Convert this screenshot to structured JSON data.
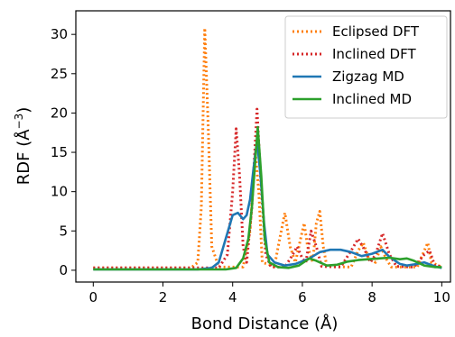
{
  "chart_data": {
    "type": "line",
    "title": "",
    "xlabel": "Bond Distance (Å)",
    "ylabel_main": "RDF (Å",
    "ylabel_exp": "−3",
    "ylabel_close": ")",
    "xlim": [
      -0.5,
      10.25
    ],
    "ylim": [
      -1.5,
      33
    ],
    "x_ticks": [
      0,
      2,
      4,
      6,
      8,
      10
    ],
    "y_ticks": [
      0,
      5,
      10,
      15,
      20,
      25,
      30
    ],
    "grid": false,
    "legend_position": "top-right",
    "series": [
      {
        "name": "Eclipsed DFT",
        "color": "#ff7f0e",
        "style": "dotted",
        "points": [
          [
            0,
            0.3
          ],
          [
            2.8,
            0.3
          ],
          [
            3.0,
            1
          ],
          [
            3.1,
            8
          ],
          [
            3.2,
            30.8
          ],
          [
            3.3,
            18
          ],
          [
            3.4,
            3
          ],
          [
            3.6,
            0.4
          ],
          [
            4.3,
            0.4
          ],
          [
            4.5,
            5
          ],
          [
            4.65,
            15
          ],
          [
            4.75,
            10
          ],
          [
            4.85,
            1
          ],
          [
            5.2,
            0.5
          ],
          [
            5.35,
            4
          ],
          [
            5.5,
            7.3
          ],
          [
            5.65,
            3
          ],
          [
            5.8,
            1
          ],
          [
            5.95,
            4
          ],
          [
            6.05,
            6
          ],
          [
            6.15,
            3
          ],
          [
            6.3,
            1
          ],
          [
            6.4,
            6
          ],
          [
            6.5,
            7.5
          ],
          [
            6.6,
            3
          ],
          [
            6.7,
            0.5
          ],
          [
            7.4,
            0.4
          ],
          [
            7.6,
            2.5
          ],
          [
            7.75,
            3.5
          ],
          [
            7.9,
            1.5
          ],
          [
            8.1,
            1
          ],
          [
            8.25,
            3
          ],
          [
            8.4,
            1.5
          ],
          [
            8.55,
            0.4
          ],
          [
            9.3,
            0.4
          ],
          [
            9.5,
            2.5
          ],
          [
            9.6,
            3.5
          ],
          [
            9.7,
            1
          ],
          [
            10.0,
            0.4
          ]
        ]
      },
      {
        "name": "Inclined DFT",
        "color": "#d62728",
        "style": "dotted",
        "points": [
          [
            0,
            0.3
          ],
          [
            3.6,
            0.3
          ],
          [
            3.85,
            2
          ],
          [
            4.0,
            10
          ],
          [
            4.1,
            18
          ],
          [
            4.2,
            12
          ],
          [
            4.3,
            3
          ],
          [
            4.4,
            1
          ],
          [
            4.55,
            8
          ],
          [
            4.7,
            20.5
          ],
          [
            4.8,
            12
          ],
          [
            4.95,
            2
          ],
          [
            5.1,
            0.4
          ],
          [
            5.5,
            0.4
          ],
          [
            5.7,
            1.8
          ],
          [
            5.85,
            3
          ],
          [
            6.0,
            1.5
          ],
          [
            6.1,
            1
          ],
          [
            6.25,
            5
          ],
          [
            6.4,
            3
          ],
          [
            6.55,
            0.5
          ],
          [
            7.1,
            0.4
          ],
          [
            7.4,
            2.5
          ],
          [
            7.6,
            4
          ],
          [
            7.8,
            2.5
          ],
          [
            7.95,
            1
          ],
          [
            8.1,
            2
          ],
          [
            8.3,
            4.7
          ],
          [
            8.5,
            2
          ],
          [
            8.7,
            0.5
          ],
          [
            9.2,
            0.4
          ],
          [
            9.5,
            2
          ],
          [
            9.65,
            2.5
          ],
          [
            9.8,
            0.6
          ],
          [
            10.0,
            0.5
          ]
        ]
      },
      {
        "name": "Zigzag MD",
        "color": "#1f77b4",
        "style": "solid",
        "points": [
          [
            0,
            0.1
          ],
          [
            3.0,
            0.1
          ],
          [
            3.4,
            0.3
          ],
          [
            3.6,
            1
          ],
          [
            3.8,
            4
          ],
          [
            4.0,
            7
          ],
          [
            4.15,
            7.3
          ],
          [
            4.3,
            6.5
          ],
          [
            4.4,
            7
          ],
          [
            4.5,
            9
          ],
          [
            4.6,
            13
          ],
          [
            4.7,
            16.5
          ],
          [
            4.8,
            12
          ],
          [
            4.9,
            6
          ],
          [
            5.0,
            2
          ],
          [
            5.2,
            1
          ],
          [
            5.5,
            0.6
          ],
          [
            5.8,
            0.8
          ],
          [
            6.2,
            1.5
          ],
          [
            6.5,
            2.3
          ],
          [
            6.8,
            2.6
          ],
          [
            7.1,
            2.6
          ],
          [
            7.4,
            2.3
          ],
          [
            7.7,
            1.8
          ],
          [
            8.0,
            2.1
          ],
          [
            8.3,
            2.6
          ],
          [
            8.5,
            1.7
          ],
          [
            8.8,
            0.8
          ],
          [
            9.0,
            0.6
          ],
          [
            9.3,
            0.8
          ],
          [
            9.5,
            1.0
          ],
          [
            9.8,
            0.5
          ],
          [
            10.0,
            0.3
          ]
        ]
      },
      {
        "name": "Inclined MD",
        "color": "#2ca02c",
        "style": "solid",
        "points": [
          [
            0,
            0.1
          ],
          [
            3.8,
            0.1
          ],
          [
            4.1,
            0.3
          ],
          [
            4.3,
            1.5
          ],
          [
            4.45,
            4
          ],
          [
            4.55,
            8
          ],
          [
            4.65,
            14
          ],
          [
            4.72,
            18.2
          ],
          [
            4.82,
            12
          ],
          [
            4.92,
            4
          ],
          [
            5.05,
            1
          ],
          [
            5.3,
            0.4
          ],
          [
            5.6,
            0.3
          ],
          [
            5.9,
            0.6
          ],
          [
            6.2,
            1.5
          ],
          [
            6.4,
            1.2
          ],
          [
            6.7,
            0.6
          ],
          [
            7.0,
            0.7
          ],
          [
            7.3,
            1.1
          ],
          [
            7.6,
            1.3
          ],
          [
            7.9,
            1.4
          ],
          [
            8.2,
            1.5
          ],
          [
            8.5,
            1.6
          ],
          [
            8.8,
            1.4
          ],
          [
            9.0,
            1.5
          ],
          [
            9.2,
            1.2
          ],
          [
            9.5,
            0.6
          ],
          [
            9.8,
            0.4
          ],
          [
            10.0,
            0.4
          ]
        ]
      }
    ]
  }
}
